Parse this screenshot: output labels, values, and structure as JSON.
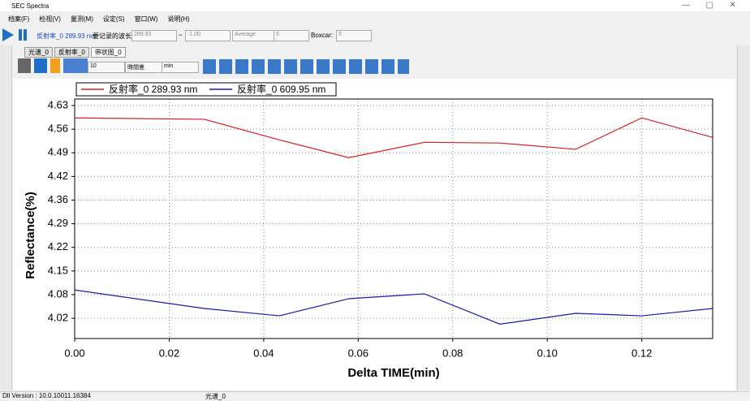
{
  "window": {
    "title": "SEC Spectra"
  },
  "menu": [
    "档案(F)",
    "检视(V)",
    "量测(M)",
    "设定(S)",
    "窗口(W)",
    "说明(H)"
  ],
  "toolbar": {
    "channel": "反射率_0 289.93 nm",
    "record_label": "要记录的波长:",
    "wl_from": "289.93",
    "sep": "~",
    "wl_to": "-1.00",
    "mode": "Average",
    "avg": "5",
    "boxcar_label": "Boxcar:",
    "boxcar": "5"
  },
  "tabs": [
    "光谱_0",
    "反射率_0",
    "带状图_0"
  ],
  "chart_toolbar": {
    "count": "10",
    "xmode": "時間差",
    "unit": "min"
  },
  "status": {
    "version": "Dll Version : 10.0.10011.16384",
    "item": "光谱_0"
  },
  "chart_data": {
    "type": "line",
    "x_label": "Delta TIME(min)",
    "y_label": "Reflectance(%)",
    "x": [
      0,
      0.0274,
      0.0433,
      0.058,
      0.074,
      0.09,
      0.106,
      0.12,
      0.135
    ],
    "series": [
      {
        "name": "反射率_0 289.93 nm",
        "color": "#d62020",
        "values": [
          4.591,
          4.587,
          4.528,
          4.477,
          4.521,
          4.519,
          4.501,
          4.591,
          4.535
        ]
      },
      {
        "name": "反射率_0 609.95 nm",
        "color": "#1a1aa8",
        "values": [
          4.098,
          4.045,
          4.024,
          4.073,
          4.087,
          4.0,
          4.031,
          4.024,
          4.045
        ]
      }
    ],
    "xlim": [
      0,
      0.135
    ],
    "ylim": [
      3.959,
      4.645
    ],
    "xticks": [
      {
        "value": 0,
        "label": "0.00"
      },
      {
        "value": 0.02,
        "label": "0.02"
      },
      {
        "value": 0.04,
        "label": "0.04"
      },
      {
        "value": 0.06,
        "label": "0.06"
      },
      {
        "value": 0.08,
        "label": "0.08"
      },
      {
        "value": 0.1,
        "label": "0.10"
      },
      {
        "value": 0.12,
        "label": "0.12"
      }
    ],
    "yticks": [
      {
        "value": 4.017,
        "label": "4.02"
      },
      {
        "value": 4.0847,
        "label": "4.08"
      },
      {
        "value": 4.1524,
        "label": "4.15"
      },
      {
        "value": 4.2201,
        "label": "4.22"
      },
      {
        "value": 4.2878,
        "label": "4.29"
      },
      {
        "value": 4.3555,
        "label": "4.36"
      },
      {
        "value": 4.4232,
        "label": "4.42"
      },
      {
        "value": 4.4909,
        "label": "4.49"
      },
      {
        "value": 4.5586,
        "label": "4.56"
      },
      {
        "value": 4.6263,
        "label": "4.63"
      }
    ],
    "grid": true
  }
}
